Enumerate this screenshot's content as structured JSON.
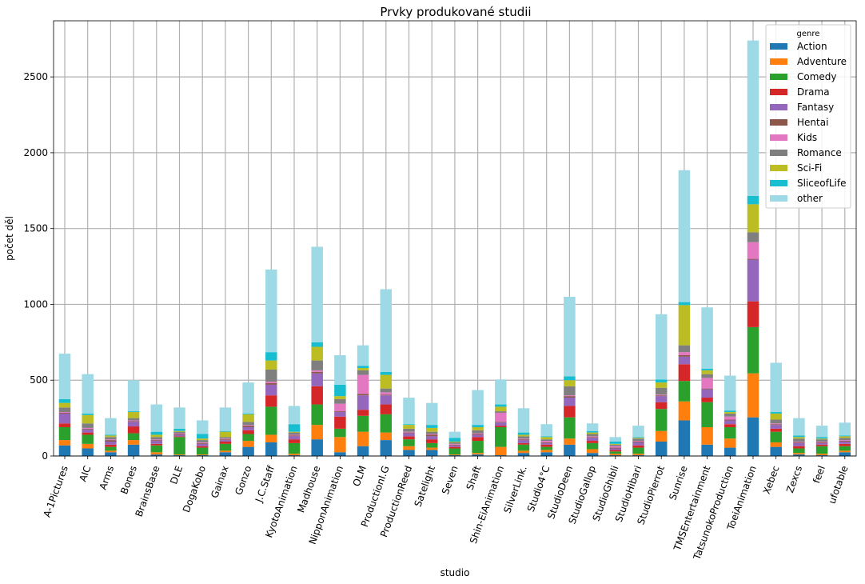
{
  "chart_data": {
    "type": "bar",
    "stacked": true,
    "title": "Prvky produkované studii",
    "xlabel": "studio",
    "ylabel": "počet děl",
    "ylim": [
      0,
      2870
    ],
    "yticks": [
      0,
      500,
      1000,
      1500,
      2000,
      2500
    ],
    "grid": true,
    "legend": {
      "title": "genre",
      "placement": "top-right"
    },
    "categories": [
      "A-1Pictures",
      "AIC",
      "Arms",
      "Bones",
      "BrainsBase",
      "DLE",
      "DogaKobo",
      "Gainax",
      "Gonzo",
      "J.C.Staff",
      "KyotoAnimation",
      "Madhouse",
      "NipponAnimation",
      "OLM",
      "ProductionI.G",
      "ProductionReed",
      "Satelight",
      "Seven",
      "Shaft",
      "Shin-EiAnimation",
      "SilverLink.",
      "Studio4°C",
      "StudioDeen",
      "StudioGallop",
      "StudioGhibli",
      "StudioHibari",
      "StudioPierrot",
      "Sunrise",
      "TMSEntertainment",
      "TatsunokoProduction",
      "ToeiAnimation",
      "Xebec",
      "Zexcs",
      "feel",
      "ufotable"
    ],
    "series": [
      {
        "name": "Action",
        "color": "#1f77b4",
        "values": [
          70,
          50,
          25,
          75,
          10,
          5,
          5,
          25,
          60,
          90,
          5,
          110,
          25,
          65,
          105,
          40,
          40,
          5,
          10,
          5,
          20,
          25,
          75,
          20,
          5,
          5,
          95,
          235,
          75,
          55,
          255,
          60,
          10,
          5,
          25
        ]
      },
      {
        "name": "Adventure",
        "color": "#ff7f0e",
        "values": [
          35,
          30,
          10,
          30,
          15,
          5,
          5,
          10,
          40,
          50,
          10,
          95,
          100,
          95,
          50,
          25,
          15,
          5,
          10,
          55,
          15,
          15,
          40,
          25,
          10,
          10,
          70,
          125,
          115,
          60,
          290,
          30,
          10,
          10,
          10
        ]
      },
      {
        "name": "Comedy",
        "color": "#2ca02c",
        "values": [
          85,
          60,
          25,
          45,
          45,
          115,
          45,
          45,
          45,
          185,
          70,
          135,
          55,
          105,
          120,
          45,
          30,
          40,
          80,
          130,
          40,
          20,
          140,
          40,
          15,
          40,
          145,
          135,
          165,
          75,
          305,
          70,
          30,
          50,
          30
        ]
      },
      {
        "name": "Drama",
        "color": "#d62728",
        "values": [
          25,
          15,
          15,
          45,
          10,
          5,
          10,
          15,
          25,
          75,
          25,
          120,
          80,
          40,
          65,
          20,
          25,
          10,
          25,
          10,
          10,
          15,
          75,
          15,
          10,
          15,
          45,
          110,
          30,
          20,
          170,
          20,
          15,
          10,
          15
        ]
      },
      {
        "name": "Fantasy",
        "color": "#9467bd",
        "values": [
          65,
          20,
          20,
          30,
          20,
          10,
          15,
          10,
          20,
          70,
          20,
          85,
          30,
          95,
          60,
          20,
          20,
          10,
          15,
          20,
          20,
          10,
          55,
          20,
          10,
          20,
          40,
          50,
          55,
          25,
          275,
          25,
          20,
          10,
          15
        ]
      },
      {
        "name": "Hentai",
        "color": "#8c564b",
        "values": [
          5,
          5,
          10,
          5,
          5,
          5,
          5,
          5,
          10,
          10,
          5,
          10,
          5,
          10,
          5,
          5,
          10,
          5,
          5,
          5,
          5,
          5,
          10,
          5,
          5,
          5,
          5,
          10,
          5,
          5,
          5,
          5,
          5,
          5,
          5
        ]
      },
      {
        "name": "Kids",
        "color": "#e377c2",
        "values": [
          5,
          5,
          5,
          5,
          5,
          5,
          5,
          5,
          5,
          10,
          5,
          10,
          50,
          125,
          15,
          5,
          5,
          5,
          5,
          60,
          5,
          10,
          5,
          5,
          10,
          5,
          5,
          20,
          70,
          20,
          110,
          5,
          5,
          5,
          5
        ]
      },
      {
        "name": "Romance",
        "color": "#7f7f7f",
        "values": [
          30,
          30,
          15,
          15,
          15,
          10,
          15,
          10,
          20,
          80,
          15,
          65,
          30,
          30,
          25,
          20,
          15,
          10,
          20,
          10,
          15,
          10,
          60,
          15,
          10,
          15,
          45,
          45,
          25,
          20,
          65,
          25,
          20,
          15,
          15
        ]
      },
      {
        "name": "Sci-Fi",
        "color": "#bcbd22",
        "values": [
          30,
          55,
          10,
          40,
          15,
          5,
          10,
          35,
          50,
          60,
          5,
          90,
          20,
          15,
          90,
          25,
          25,
          5,
          20,
          30,
          10,
          15,
          40,
          10,
          5,
          5,
          35,
          265,
          25,
          10,
          185,
          40,
          10,
          5,
          10
        ]
      },
      {
        "name": "SliceofLife",
        "color": "#17becf",
        "values": [
          25,
          10,
          5,
          5,
          20,
          15,
          30,
          5,
          5,
          55,
          50,
          30,
          75,
          15,
          20,
          5,
          20,
          25,
          15,
          15,
          15,
          5,
          25,
          10,
          15,
          5,
          20,
          20,
          10,
          10,
          55,
          10,
          10,
          10,
          5
        ]
      },
      {
        "name": "other",
        "color": "#9edae5",
        "values": [
          300,
          260,
          110,
          205,
          180,
          140,
          90,
          155,
          205,
          545,
          120,
          630,
          195,
          135,
          545,
          175,
          145,
          40,
          230,
          165,
          160,
          80,
          525,
          50,
          30,
          75,
          430,
          870,
          405,
          230,
          1025,
          325,
          115,
          75,
          85
        ]
      }
    ]
  }
}
